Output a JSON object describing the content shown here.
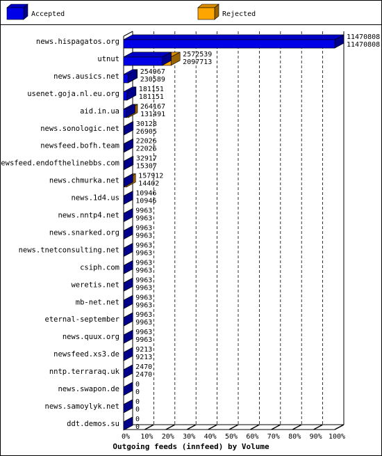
{
  "chart_data": {
    "type": "bar",
    "orientation": "horizontal",
    "xlabel": "Outgoing feeds (innfeed) by Volume",
    "categories": [
      "news.hispagatos.org",
      "utnut",
      "news.ausics.net",
      "usenet.goja.nl.eu.org",
      "aid.in.ua",
      "news.sonologic.net",
      "newsfeed.bofh.team",
      "newsfeed.endofthelinebbs.com",
      "news.chmurka.net",
      "news.1d4.us",
      "news.nntp4.net",
      "news.snarked.org",
      "news.tnetconsulting.net",
      "csiph.com",
      "weretis.net",
      "mb-net.net",
      "eternal-september",
      "news.quux.org",
      "newsfeed.xs3.de",
      "nntp.terraraq.uk",
      "news.swapon.de",
      "news.samoylyk.net",
      "ddt.demos.su"
    ],
    "series": [
      {
        "name": "Accepted",
        "color": "#0000e8",
        "values": [
          11470808,
          2097713,
          230589,
          181151,
          131491,
          26905,
          22026,
          15307,
          14402,
          10946,
          9963,
          9963,
          9963,
          9963,
          9963,
          9963,
          9963,
          9963,
          9213,
          2470,
          0,
          0,
          0
        ]
      },
      {
        "name": "Rejected",
        "color": "#ffa500",
        "values": [
          11470808,
          2572539,
          254967,
          181151,
          264167,
          30128,
          22026,
          32917,
          157912,
          10946,
          9963,
          9963,
          9963,
          9963,
          9963,
          9963,
          9963,
          9963,
          9213,
          2470,
          0,
          0,
          0
        ]
      }
    ],
    "xlim": [
      0,
      11470808
    ],
    "xticks": [
      {
        "value": 0,
        "label": "0%"
      },
      {
        "value": 1147080.8,
        "label": "10%"
      },
      {
        "value": 2294161.6,
        "label": "20%"
      },
      {
        "value": 3441242.4,
        "label": "30%"
      },
      {
        "value": 4588323.2,
        "label": "40%"
      },
      {
        "value": 5735404,
        "label": "50%"
      },
      {
        "value": 6882484.8,
        "label": "60%"
      },
      {
        "value": 8029565.6,
        "label": "70%"
      },
      {
        "value": 9176646.4,
        "label": "80%"
      },
      {
        "value": 10323727.2,
        "label": "90%"
      },
      {
        "value": 11470808,
        "label": "100%"
      }
    ],
    "grid": true
  }
}
